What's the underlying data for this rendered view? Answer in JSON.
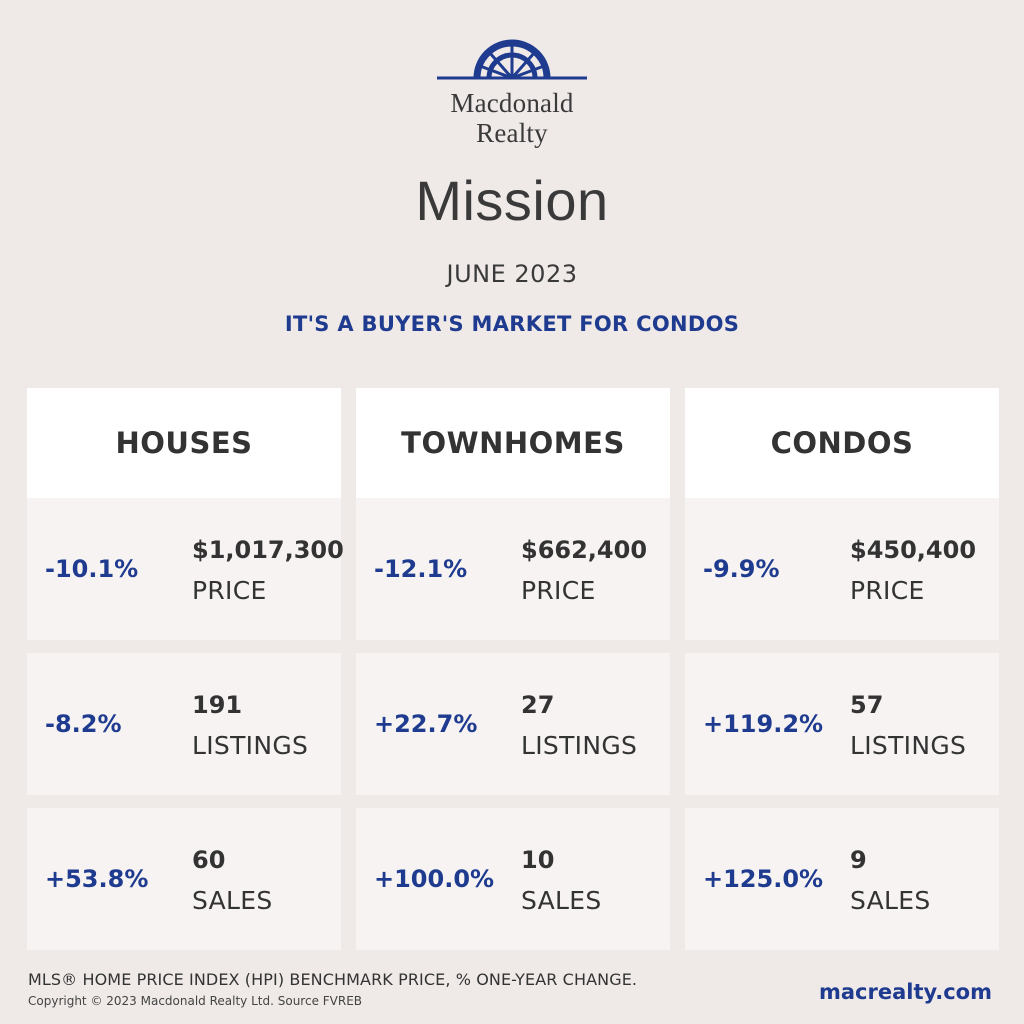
{
  "brand": {
    "logo_icon": "sunburst-logo-icon",
    "line1": "Macdonald",
    "line2": "Realty",
    "accent_color": "#1f3b8f"
  },
  "city": "Mission",
  "month": "JUNE 2023",
  "tagline": "IT'S A BUYER'S MARKET FOR CONDOS",
  "columns": [
    {
      "title": "HOUSES",
      "price": {
        "change": "-10.1%",
        "value": "$1,017,300",
        "label": "PRICE"
      },
      "listings": {
        "change": "-8.2%",
        "value": "191",
        "label": "LISTINGS"
      },
      "sales": {
        "change": "+53.8%",
        "value": "60",
        "label": "SALES"
      }
    },
    {
      "title": "TOWNHOMES",
      "price": {
        "change": "-12.1%",
        "value": "$662,400",
        "label": "PRICE"
      },
      "listings": {
        "change": "+22.7%",
        "value": "27",
        "label": "LISTINGS"
      },
      "sales": {
        "change": "+100.0%",
        "value": "10",
        "label": "SALES"
      }
    },
    {
      "title": "CONDOS",
      "price": {
        "change": "-9.9%",
        "value": "$450,400",
        "label": "PRICE"
      },
      "listings": {
        "change": "+119.2%",
        "value": "57",
        "label": "LISTINGS"
      },
      "sales": {
        "change": "+125.0%",
        "value": "9",
        "label": "SALES"
      }
    }
  ],
  "footnote": "MLS® HOME PRICE INDEX (HPI) BENCHMARK PRICE, % ONE-YEAR CHANGE.",
  "copyright": "Copyright © 2023 Macdonald Realty Ltd. Source FVREB",
  "website": "macrealty.com"
}
